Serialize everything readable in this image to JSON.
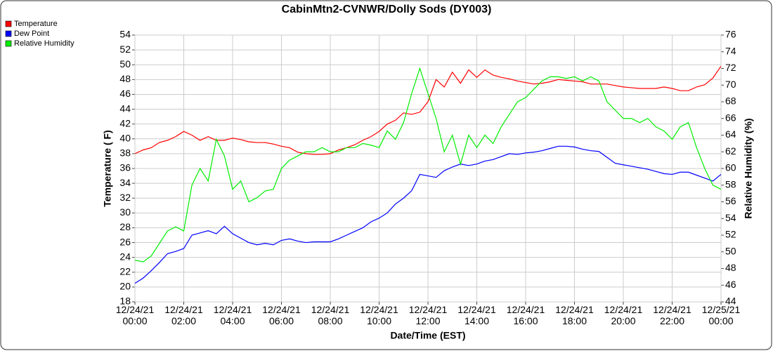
{
  "chart_data": {
    "type": "line",
    "title": "CabinMtn2-CVNWR/Dolly Sods (DY003)",
    "xlabel": "Date/Time (EST)",
    "ylabel": "Temperature ( F)",
    "y2label": "Relative Humidity (%)",
    "x": [
      0,
      20,
      40,
      60,
      80,
      100,
      120,
      140,
      160,
      180,
      200,
      220,
      240,
      260,
      280,
      300,
      320,
      340,
      360,
      380,
      400,
      420,
      440,
      460,
      480,
      500,
      520,
      540,
      560,
      580,
      600,
      620,
      640,
      660,
      680,
      700,
      720,
      740,
      760,
      780,
      800,
      820,
      840,
      860,
      880,
      900,
      920,
      940,
      960,
      980,
      1000,
      1020,
      1040,
      1060,
      1080,
      1100,
      1120,
      1140,
      1160,
      1180,
      1200,
      1220,
      1240,
      1260,
      1280,
      1300,
      1320,
      1340,
      1360,
      1380,
      1400,
      1420,
      1440
    ],
    "xlim": [
      0,
      1440
    ],
    "xticks": [
      {
        "value": 0,
        "label": "12/24/21 00:00"
      },
      {
        "value": 120,
        "label": "12/24/21 02:00"
      },
      {
        "value": 240,
        "label": "12/24/21 04:00"
      },
      {
        "value": 360,
        "label": "12/24/21 06:00"
      },
      {
        "value": 480,
        "label": "12/24/21 08:00"
      },
      {
        "value": 600,
        "label": "12/24/21 10:00"
      },
      {
        "value": 720,
        "label": "12/24/21 12:00"
      },
      {
        "value": 840,
        "label": "12/24/21 14:00"
      },
      {
        "value": 960,
        "label": "12/24/21 16:00"
      },
      {
        "value": 1080,
        "label": "12/24/21 18:00"
      },
      {
        "value": 1200,
        "label": "12/24/21 20:00"
      },
      {
        "value": 1320,
        "label": "12/24/21 22:00"
      },
      {
        "value": 1440,
        "label": "12/25/21 00:00"
      }
    ],
    "ylim": [
      18,
      54
    ],
    "yticks": [
      18,
      20,
      22,
      24,
      26,
      28,
      30,
      32,
      34,
      36,
      38,
      40,
      42,
      44,
      46,
      48,
      50,
      52,
      54
    ],
    "y2lim": [
      44,
      76
    ],
    "y2ticks": [
      44,
      46,
      48,
      50,
      52,
      54,
      56,
      58,
      60,
      62,
      64,
      66,
      68,
      70,
      72,
      74,
      76
    ],
    "grid": true,
    "legend": "top-left",
    "series": [
      {
        "name": "Temperature",
        "color": "#ff0000",
        "values": [
          38,
          38.5,
          38.8,
          39.5,
          39.8,
          40.3,
          41,
          40.5,
          39.8,
          40.3,
          39.8,
          39.8,
          40.1,
          39.9,
          39.6,
          39.5,
          39.5,
          39.3,
          39,
          38.8,
          38.2,
          38,
          37.9,
          37.9,
          38,
          38.5,
          38.8,
          39.2,
          39.8,
          40.3,
          41,
          42,
          42.5,
          43.5,
          43.3,
          43.6,
          45,
          48,
          47,
          49,
          47.5,
          49.3,
          48.3,
          49.3,
          48.6,
          48.3,
          48.1,
          47.8,
          47.6,
          47.4,
          47.5,
          47.7,
          48,
          47.9,
          47.8,
          47.7,
          47.4,
          47.4,
          47.4,
          47.2,
          47,
          46.9,
          46.8,
          46.8,
          46.8,
          47,
          46.8,
          46.5,
          46.5,
          47,
          47.3,
          48.2,
          49.8
        ]
      },
      {
        "name": "Dew Point",
        "color": "#0000ff",
        "values": [
          20.5,
          21.2,
          22.2,
          23.3,
          24.5,
          24.8,
          25.2,
          27,
          27.3,
          27.6,
          27.2,
          28.2,
          27.2,
          26.6,
          26,
          25.7,
          25.9,
          25.7,
          26.3,
          26.5,
          26.2,
          26,
          26.1,
          26.1,
          26.1,
          26.5,
          27,
          27.5,
          28,
          28.8,
          29.3,
          30,
          31.2,
          32,
          33,
          35.2,
          35,
          34.8,
          35.7,
          36.2,
          36.6,
          36.4,
          36.6,
          37,
          37.2,
          37.6,
          38,
          37.9,
          38.1,
          38.2,
          38.4,
          38.7,
          39,
          39,
          38.9,
          38.6,
          38.4,
          38.3,
          37.5,
          36.7,
          36.5,
          36.3,
          36.1,
          35.9,
          35.6,
          35.3,
          35.2,
          35.5,
          35.5,
          35.1,
          34.7,
          34.3,
          35.2
        ]
      },
      {
        "name": "Relative Humidity",
        "color": "#00ee00",
        "axis": "y2",
        "values": [
          49,
          48.8,
          49.5,
          51,
          52.5,
          53,
          52.5,
          58,
          60,
          58.5,
          63.5,
          61.5,
          57.5,
          58.5,
          56,
          56.5,
          57.3,
          57.5,
          60,
          61,
          61.5,
          62,
          62,
          62.5,
          62,
          62,
          62.5,
          62.5,
          63,
          62.8,
          62.5,
          64.5,
          63.5,
          65.5,
          69,
          72,
          69,
          66,
          62,
          64,
          60.5,
          64,
          62.5,
          64,
          63,
          65,
          66.5,
          68,
          68.5,
          69.5,
          70.5,
          71,
          71,
          70.8,
          71,
          70.5,
          71,
          70.5,
          68,
          67,
          66,
          66,
          65.5,
          66,
          65,
          64.5,
          63.5,
          65,
          65.5,
          62.5,
          60,
          58,
          57.5
        ]
      }
    ]
  }
}
